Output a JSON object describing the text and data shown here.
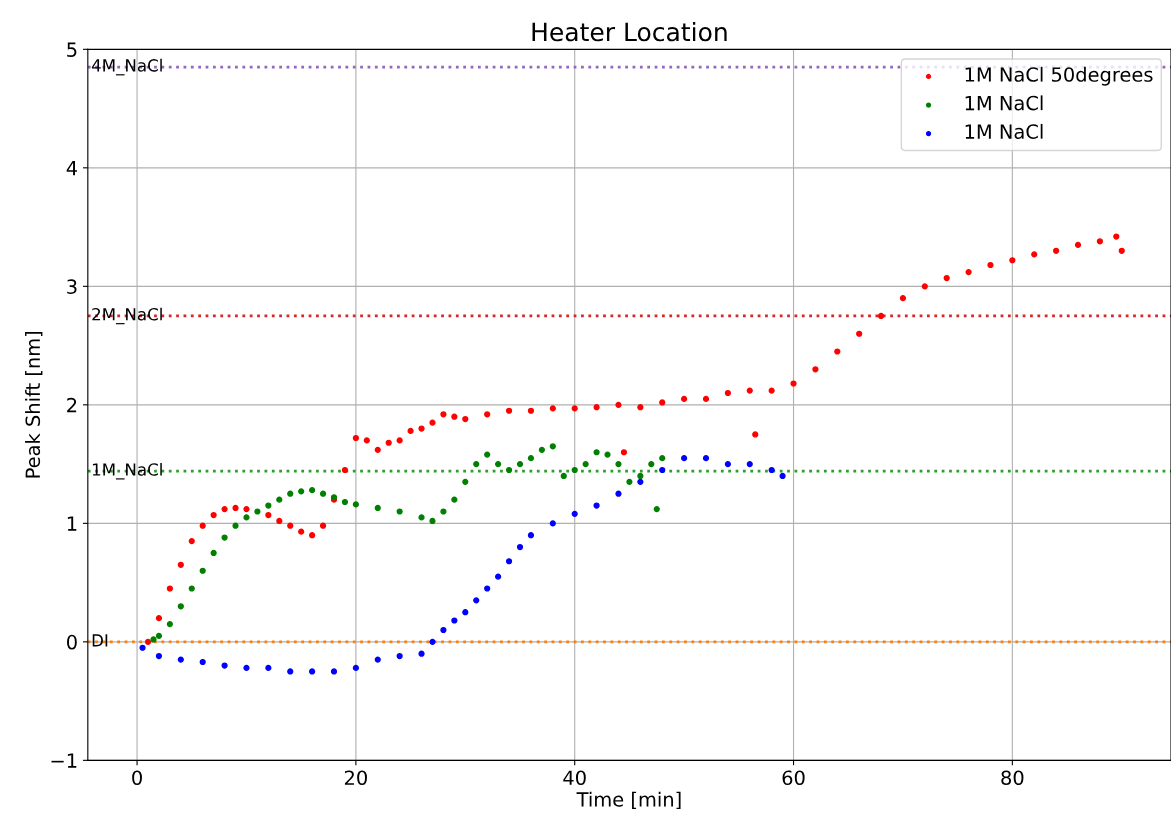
{
  "chart_data": {
    "type": "scatter",
    "title": "Heater Location",
    "xlabel": "Time [min]",
    "ylabel": "Peak Shift [nm]",
    "xlim": [
      -4.5,
      94.5
    ],
    "xticks": [
      0,
      20,
      40,
      60,
      80
    ],
    "ylim": [
      -1,
      5
    ],
    "yticks": [
      -1,
      0,
      1,
      2,
      3,
      4,
      5
    ],
    "grid": true,
    "legend": "top right",
    "marker": "circle",
    "ref_lines": [
      {
        "axis": "y",
        "value": 4.85,
        "label": "4M_NaCl",
        "color": "#9467bd",
        "line_style": "dotted"
      },
      {
        "axis": "y",
        "value": 2.75,
        "label": "2M_NaCl",
        "color": "#d62728",
        "line_style": "dotted"
      },
      {
        "axis": "y",
        "value": 1.44,
        "label": "1M_NaCl",
        "color": "#2ca02c",
        "line_style": "dotted"
      },
      {
        "axis": "y",
        "value": 0,
        "label": "DI",
        "color": "#ff7f0e",
        "line_style": "dotted"
      }
    ],
    "series": [
      {
        "name": "1M NaCl 50degrees",
        "color": "#ff0000",
        "x": [
          1,
          2,
          3,
          4,
          5,
          6,
          7,
          8,
          9,
          10,
          12,
          13,
          14,
          15,
          16,
          17,
          18,
          19,
          20,
          21,
          22,
          23,
          24,
          25,
          26,
          27,
          28,
          29,
          30,
          32,
          34,
          36,
          38,
          40,
          42,
          44,
          44.5,
          46,
          48,
          50,
          52,
          54,
          56,
          56.5,
          58,
          60,
          62,
          64,
          66,
          68,
          70,
          72,
          74,
          76,
          78,
          80,
          82,
          84,
          86,
          88,
          89.5,
          90
        ],
        "values": [
          0,
          0.2,
          0.45,
          0.65,
          0.85,
          0.98,
          1.07,
          1.12,
          1.13,
          1.12,
          1.07,
          1.02,
          0.98,
          0.93,
          0.9,
          0.98,
          1.2,
          1.45,
          1.72,
          1.7,
          1.62,
          1.68,
          1.7,
          1.78,
          1.8,
          1.85,
          1.92,
          1.9,
          1.88,
          1.92,
          1.95,
          1.95,
          1.97,
          1.97,
          1.98,
          2.0,
          1.6,
          1.98,
          2.02,
          2.05,
          2.05,
          2.1,
          2.12,
          1.75,
          2.12,
          2.18,
          2.3,
          2.45,
          2.6,
          2.75,
          2.9,
          3.0,
          3.07,
          3.12,
          3.18,
          3.22,
          3.27,
          3.3,
          3.35,
          3.38,
          3.42,
          3.3
        ]
      },
      {
        "name": "1M NaCl",
        "color": "#008000",
        "x": [
          1.5,
          2,
          3,
          4,
          5,
          6,
          7,
          8,
          9,
          10,
          11,
          12,
          13,
          14,
          15,
          16,
          17,
          18,
          19,
          20,
          22,
          24,
          26,
          27,
          28,
          29,
          30,
          31,
          32,
          33,
          34,
          35,
          36,
          37,
          38,
          39,
          40,
          41,
          42,
          43,
          44,
          45,
          46,
          47,
          47.5,
          48
        ],
        "values": [
          0.02,
          0.05,
          0.15,
          0.3,
          0.45,
          0.6,
          0.75,
          0.88,
          0.98,
          1.05,
          1.1,
          1.15,
          1.2,
          1.25,
          1.27,
          1.28,
          1.25,
          1.22,
          1.18,
          1.16,
          1.13,
          1.1,
          1.05,
          1.02,
          1.1,
          1.2,
          1.35,
          1.5,
          1.58,
          1.5,
          1.45,
          1.5,
          1.55,
          1.62,
          1.65,
          1.4,
          1.45,
          1.5,
          1.6,
          1.58,
          1.5,
          1.35,
          1.4,
          1.5,
          1.12,
          1.55
        ]
      },
      {
        "name": "1M NaCl",
        "color": "#0000ff",
        "x": [
          0.5,
          2,
          4,
          6,
          8,
          10,
          12,
          14,
          16,
          18,
          20,
          22,
          24,
          26,
          27,
          28,
          29,
          30,
          31,
          32,
          33,
          34,
          35,
          36,
          38,
          40,
          42,
          44,
          46,
          48,
          50,
          52,
          54,
          56,
          58,
          59
        ],
        "values": [
          -0.05,
          -0.12,
          -0.15,
          -0.17,
          -0.2,
          -0.22,
          -0.22,
          -0.25,
          -0.25,
          -0.25,
          -0.22,
          -0.15,
          -0.12,
          -0.1,
          0,
          0.1,
          0.18,
          0.25,
          0.35,
          0.45,
          0.55,
          0.68,
          0.8,
          0.9,
          1.0,
          1.08,
          1.15,
          1.25,
          1.35,
          1.45,
          1.55,
          1.55,
          1.5,
          1.5,
          1.45,
          1.4
        ]
      }
    ]
  }
}
